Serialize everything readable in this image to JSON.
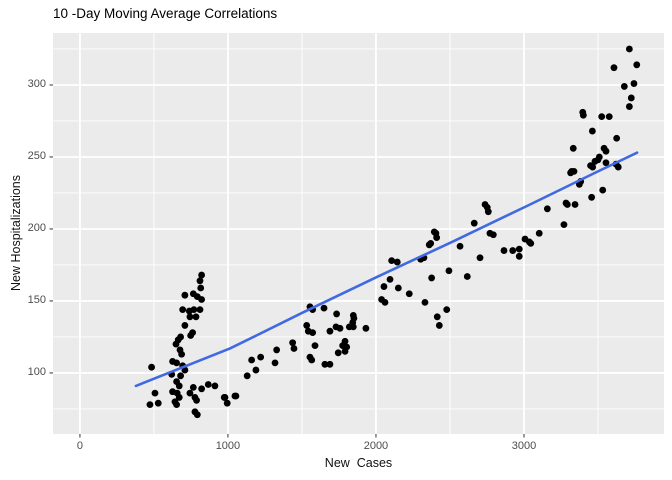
{
  "chart_data": {
    "type": "scatter",
    "title": "10 -Day Moving Average Correlations",
    "xlabel": "New  Cases",
    "ylabel": "New Hospitalizations",
    "legend": false,
    "grid": true,
    "x_ticks": [
      0,
      1000,
      2000,
      3000
    ],
    "y_ticks": [
      100,
      150,
      200,
      250,
      300
    ],
    "x_minor": [
      500,
      1500,
      2500,
      3500
    ],
    "y_minor": [
      75,
      125,
      175,
      225,
      275,
      325
    ],
    "xlim": [
      -182,
      3946
    ],
    "ylim": [
      57.6,
      336.1
    ],
    "colors": {
      "panel_bg": "#EBEBEB",
      "grid": "#FFFFFF",
      "point": "#000000",
      "trend_line": "#4169E1",
      "axis_text": "#4D4D4D",
      "tick_mark": "#333333"
    },
    "series": [
      {
        "name": "scatter-points",
        "type": "scatter",
        "color": "#000000",
        "points": [
          [
            822,
            168
          ],
          [
            811,
            164
          ],
          [
            816,
            159
          ],
          [
            709,
            154
          ],
          [
            766,
            155
          ],
          [
            793,
            153
          ],
          [
            822,
            151
          ],
          [
            694,
            144
          ],
          [
            739,
            143
          ],
          [
            770,
            144
          ],
          [
            811,
            144
          ],
          [
            743,
            139
          ],
          [
            784,
            139
          ],
          [
            709,
            133
          ],
          [
            748,
            126
          ],
          [
            761,
            128
          ],
          [
            664,
            123
          ],
          [
            680,
            125
          ],
          [
            649,
            120
          ],
          [
            676,
            116
          ],
          [
            687,
            113
          ],
          [
            626,
            108
          ],
          [
            653,
            107
          ],
          [
            484,
            104
          ],
          [
            694,
            105
          ],
          [
            709,
            102
          ],
          [
            620,
            99
          ],
          [
            680,
            98
          ],
          [
            653,
            94
          ],
          [
            671,
            91
          ],
          [
            626,
            87
          ],
          [
            507,
            86
          ],
          [
            657,
            86
          ],
          [
            671,
            83
          ],
          [
            642,
            80
          ],
          [
            766,
            90
          ],
          [
            743,
            86
          ],
          [
            822,
            89
          ],
          [
            867,
            92
          ],
          [
            912,
            91
          ],
          [
            473,
            78
          ],
          [
            529,
            79
          ],
          [
            777,
            83
          ],
          [
            788,
            81
          ],
          [
            653,
            78
          ],
          [
            975,
            83
          ],
          [
            995,
            79
          ],
          [
            777,
            73
          ],
          [
            793,
            71
          ],
          [
            980,
            83
          ],
          [
            1047,
            84
          ],
          [
            1054,
            84
          ],
          [
            1730,
            132
          ],
          [
            1757,
            131
          ],
          [
            1554,
            146
          ],
          [
            1572,
            144
          ],
          [
            1649,
            145
          ],
          [
            1734,
            141
          ],
          [
            1847,
            140
          ],
          [
            1851,
            138
          ],
          [
            1843,
            135
          ],
          [
            1532,
            133
          ],
          [
            1820,
            132
          ],
          [
            1847,
            132
          ],
          [
            1932,
            131
          ],
          [
            1689,
            129
          ],
          [
            1543,
            129
          ],
          [
            1572,
            128
          ],
          [
            1588,
            119
          ],
          [
            1437,
            121
          ],
          [
            1446,
            117
          ],
          [
            1791,
            122
          ],
          [
            1775,
            119
          ],
          [
            1802,
            118
          ],
          [
            1791,
            115
          ],
          [
            1745,
            114
          ],
          [
            1329,
            116
          ],
          [
            1221,
            111
          ],
          [
            1318,
            107
          ],
          [
            1160,
            109
          ],
          [
            1189,
            102
          ],
          [
            1130,
            98
          ],
          [
            1554,
            111
          ],
          [
            1566,
            109
          ],
          [
            1655,
            106
          ],
          [
            1689,
            106
          ],
          [
            2737,
            217
          ],
          [
            2752,
            215
          ],
          [
            2759,
            212
          ],
          [
            2664,
            204
          ],
          [
            2770,
            197
          ],
          [
            2793,
            196
          ],
          [
            2394,
            198
          ],
          [
            2405,
            197
          ],
          [
            2410,
            194
          ],
          [
            2370,
            190
          ],
          [
            2360,
            189
          ],
          [
            2568,
            188
          ],
          [
            3007,
            193
          ],
          [
            3036,
            191
          ],
          [
            2968,
            186
          ],
          [
            2865,
            185
          ],
          [
            2924,
            185
          ],
          [
            2968,
            181
          ],
          [
            2703,
            180
          ],
          [
            2302,
            179
          ],
          [
            2324,
            180
          ],
          [
            2144,
            177
          ],
          [
            2106,
            178
          ],
          [
            2095,
            165
          ],
          [
            2054,
            160
          ],
          [
            2151,
            159
          ],
          [
            2376,
            166
          ],
          [
            2493,
            171
          ],
          [
            2617,
            167
          ],
          [
            2038,
            151
          ],
          [
            2061,
            149
          ],
          [
            2225,
            155
          ],
          [
            2331,
            149
          ],
          [
            2478,
            144
          ],
          [
            2414,
            139
          ],
          [
            2428,
            133
          ],
          [
            3712,
            325
          ],
          [
            3762,
            314
          ],
          [
            3608,
            312
          ],
          [
            3743,
            301
          ],
          [
            3678,
            299
          ],
          [
            3725,
            291
          ],
          [
            3712,
            285
          ],
          [
            3397,
            281
          ],
          [
            3401,
            279
          ],
          [
            3525,
            278
          ],
          [
            3576,
            278
          ],
          [
            3462,
            268
          ],
          [
            3626,
            263
          ],
          [
            3333,
            256
          ],
          [
            3541,
            256
          ],
          [
            3554,
            254
          ],
          [
            3509,
            250
          ],
          [
            3480,
            247
          ],
          [
            3500,
            248
          ],
          [
            3554,
            246
          ],
          [
            3450,
            244
          ],
          [
            3464,
            243
          ],
          [
            3322,
            240
          ],
          [
            3338,
            240
          ],
          [
            3315,
            239
          ],
          [
            3622,
            245
          ],
          [
            3637,
            243
          ],
          [
            3383,
            233
          ],
          [
            3374,
            231
          ],
          [
            3532,
            227
          ],
          [
            3457,
            222
          ],
          [
            3284,
            218
          ],
          [
            3293,
            217
          ],
          [
            3345,
            217
          ],
          [
            3158,
            214
          ],
          [
            3270,
            203
          ],
          [
            3103,
            197
          ],
          [
            3046,
            190
          ]
        ]
      },
      {
        "name": "trend-line",
        "type": "line",
        "color": "#4169E1",
        "points": [
          [
            378,
            91
          ],
          [
            1014,
            117
          ],
          [
            1507,
            142
          ],
          [
            2014,
            167
          ],
          [
            2514,
            191
          ],
          [
            3041,
            217
          ],
          [
            3500,
            240
          ],
          [
            3764,
            253
          ]
        ]
      }
    ]
  }
}
